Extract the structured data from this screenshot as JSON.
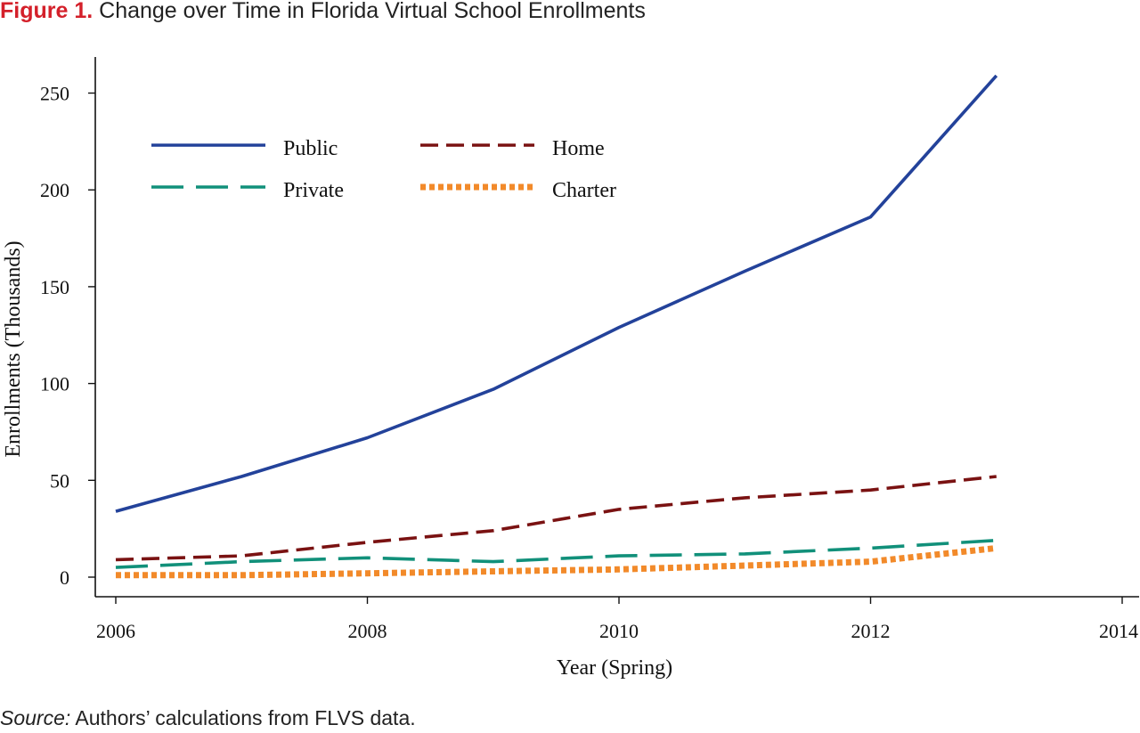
{
  "figure": {
    "label": "Figure 1.",
    "title": "Change over Time in Florida Virtual School Enrollments"
  },
  "source": {
    "lead": "Source:",
    "text": "Authors’ calculations from FLVS data."
  },
  "chart_data": {
    "type": "line",
    "xlabel": "Year (Spring)",
    "ylabel": "Enrollments (Thousands)",
    "xlim": [
      2006,
      2014
    ],
    "ylim": [
      0,
      265
    ],
    "xticks": [
      2006,
      2008,
      2010,
      2012,
      2014
    ],
    "yticks": [
      0,
      50,
      100,
      150,
      200,
      250
    ],
    "grid": false,
    "legend_position": "top-left",
    "x": [
      2006,
      2007,
      2008,
      2009,
      2010,
      2011,
      2012,
      2013
    ],
    "series": [
      {
        "name": "Public",
        "color": "#23429a",
        "dash": "solid",
        "values": [
          34,
          52,
          72,
          97,
          129,
          158,
          186,
          259
        ]
      },
      {
        "name": "Home",
        "color": "#7a1212",
        "dash": "dashed",
        "values": [
          9,
          11,
          18,
          24,
          35,
          41,
          45,
          52
        ]
      },
      {
        "name": "Private",
        "color": "#11907a",
        "dash": "longdash",
        "values": [
          5,
          8,
          10,
          8,
          11,
          12,
          15,
          19
        ]
      },
      {
        "name": "Charter",
        "color": "#f28a2a",
        "dash": "dotted",
        "values": [
          1,
          1,
          2,
          3,
          4,
          6,
          8,
          15
        ]
      }
    ]
  }
}
